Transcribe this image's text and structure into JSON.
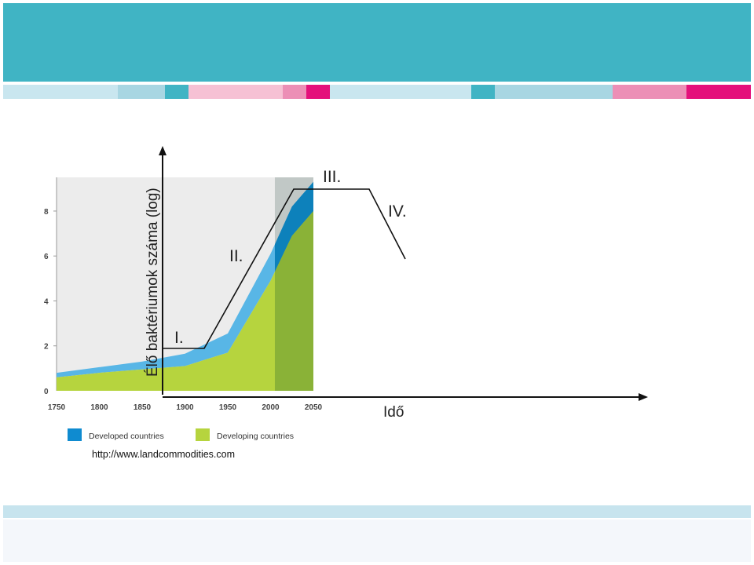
{
  "colors": {
    "header": "#40b4c4",
    "stripes": [
      "#c9e6ef",
      "#a8d6e2",
      "#40b4c4",
      "#f6c1d4",
      "#ec8fb6",
      "#e4107b"
    ],
    "developed": "#0f8bd0",
    "developed_light": "#58b6e6",
    "developing": "#b6d43e",
    "developing_dark": "#9ec33a",
    "plot_bg": "#ececec",
    "projection_bg": "#dcdcdc"
  },
  "chart_data": [
    {
      "type": "area",
      "x": [
        1750,
        1800,
        1850,
        1900,
        1950,
        2000,
        2025,
        2050
      ],
      "ylim": [
        0,
        9.5
      ],
      "xlim": [
        1750,
        2050
      ],
      "x_ticks": [
        "1750",
        "1800",
        "1850",
        "1900",
        "1950",
        "2000",
        "2050"
      ],
      "y_ticks": [
        "0",
        "2",
        "4",
        "6",
        "8"
      ],
      "series": [
        {
          "name": "Developing countries",
          "values": [
            0.6,
            0.8,
            0.95,
            1.1,
            1.7,
            4.9,
            6.9,
            8.0
          ]
        },
        {
          "name": "Developed countries",
          "values": [
            0.2,
            0.25,
            0.35,
            0.55,
            0.85,
            1.2,
            1.3,
            1.3
          ]
        }
      ],
      "legend": "bottom",
      "source": "http://www.landcommodities.com"
    },
    {
      "type": "line",
      "xlabel": "Idő",
      "ylabel": "Élő baktériumok száma  (log)",
      "phases": [
        "I.",
        "II.",
        "III.",
        "IV."
      ]
    }
  ]
}
